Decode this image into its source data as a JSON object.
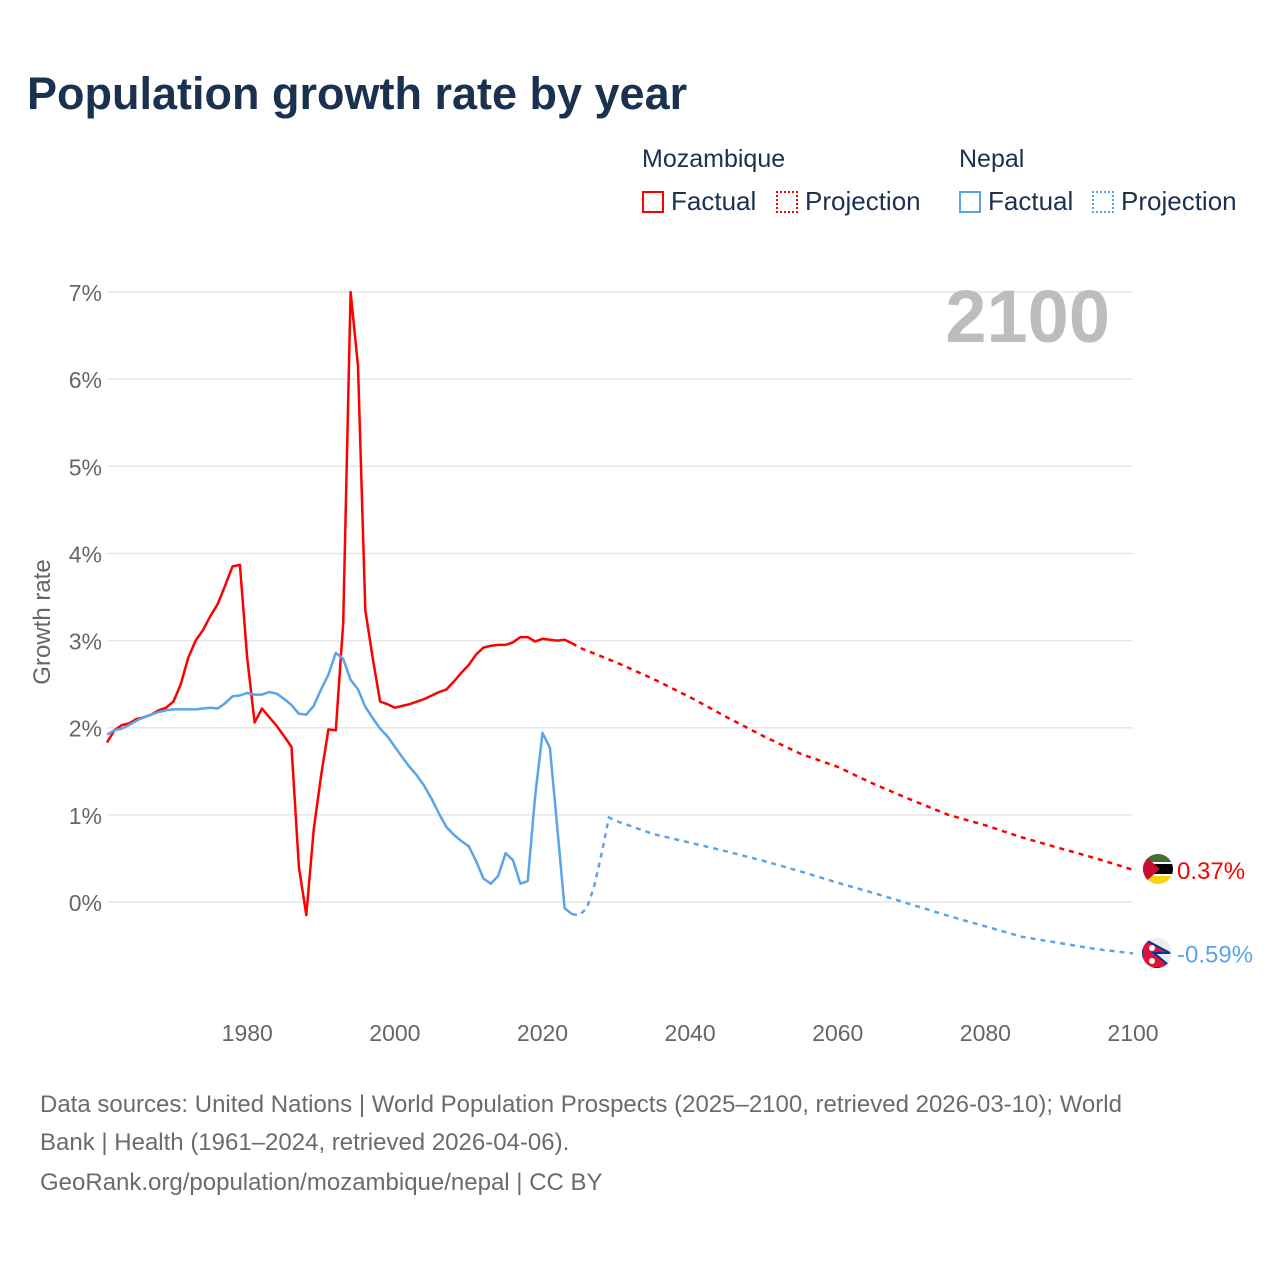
{
  "title": "Population growth rate by year",
  "legend": {
    "groups": [
      {
        "country": "Mozambique",
        "color": "#ff0000",
        "factual": "Factual",
        "projection": "Projection"
      },
      {
        "country": "Nepal",
        "color": "#5ba4ea",
        "factual": "Factual",
        "projection": "Projection"
      }
    ]
  },
  "footer": {
    "line1": "Data sources: United Nations | World Population Prospects (2025–2100, retrieved 2026-03-10); World",
    "line2": "Bank | Health (1961–2024, retrieved 2026-04-06).",
    "line3": "GeoRank.org/population/mozambique/nepal | CC BY"
  },
  "chart_data": {
    "type": "line",
    "title": "Population growth rate by year",
    "xlabel": "",
    "ylabel": "Growth rate",
    "xlim": [
      1961,
      2100
    ],
    "ylim": [
      -1.2,
      7
    ],
    "xticks": [
      1980,
      2000,
      2020,
      2040,
      2060,
      2080,
      2100
    ],
    "yticks": [
      0,
      1,
      2,
      3,
      4,
      5,
      6,
      7
    ],
    "ytick_labels": [
      "0%",
      "1%",
      "2%",
      "3%",
      "4%",
      "5%",
      "6%",
      "7%"
    ],
    "year_label": "2100",
    "grid": true,
    "legend_position": "top-right",
    "series": [
      {
        "name": "Mozambique",
        "color": "#ff0000",
        "end_label": "0.37%",
        "factual": {
          "x": [
            1961,
            1962,
            1963,
            1964,
            1965,
            1966,
            1967,
            1968,
            1969,
            1970,
            1971,
            1972,
            1973,
            1974,
            1975,
            1976,
            1977,
            1978,
            1979,
            1980,
            1981,
            1982,
            1983,
            1984,
            1985,
            1986,
            1987,
            1988,
            1989,
            1990,
            1991,
            1992,
            1993,
            1994,
            1995,
            1996,
            1997,
            1998,
            1999,
            2000,
            2001,
            2002,
            2003,
            2004,
            2005,
            2006,
            2007,
            2008,
            2009,
            2010,
            2011,
            2012,
            2013,
            2014,
            2015,
            2016,
            2017,
            2018,
            2019,
            2020,
            2021,
            2022,
            2023,
            2024
          ],
          "y": [
            1.83,
            1.97,
            2.03,
            2.05,
            2.1,
            2.12,
            2.15,
            2.2,
            2.23,
            2.3,
            2.5,
            2.8,
            3.0,
            3.12,
            3.28,
            3.42,
            3.63,
            3.85,
            3.87,
            2.8,
            2.06,
            2.22,
            2.12,
            2.02,
            1.9,
            1.78,
            0.4,
            -0.15,
            0.83,
            1.45,
            1.98,
            1.97,
            3.2,
            7.0,
            6.15,
            3.35,
            2.8,
            2.3,
            2.27,
            2.23,
            2.25,
            2.27,
            2.3,
            2.33,
            2.37,
            2.41,
            2.44,
            2.53,
            2.63,
            2.72,
            2.84,
            2.92,
            2.94,
            2.95,
            2.95,
            2.98,
            3.04,
            3.04,
            2.99,
            3.02,
            3.01,
            3.0,
            3.01,
            2.97
          ]
        },
        "projection": {
          "x": [
            2024,
            2025,
            2030,
            2035,
            2040,
            2045,
            2050,
            2055,
            2060,
            2065,
            2070,
            2075,
            2080,
            2085,
            2090,
            2095,
            2100
          ],
          "y": [
            2.97,
            2.92,
            2.75,
            2.56,
            2.35,
            2.12,
            1.9,
            1.7,
            1.55,
            1.35,
            1.17,
            1.0,
            0.88,
            0.74,
            0.62,
            0.5,
            0.37
          ]
        }
      },
      {
        "name": "Nepal",
        "color": "#5ba4ea",
        "end_label": "-0.59%",
        "factual": {
          "x": [
            1961,
            1962,
            1963,
            1964,
            1965,
            1966,
            1967,
            1968,
            1969,
            1970,
            1971,
            1972,
            1973,
            1974,
            1975,
            1976,
            1977,
            1978,
            1979,
            1980,
            1981,
            1982,
            1983,
            1984,
            1985,
            1986,
            1987,
            1988,
            1989,
            1990,
            1991,
            1992,
            1993,
            1994,
            1995,
            1996,
            1997,
            1998,
            1999,
            2000,
            2001,
            2002,
            2003,
            2004,
            2005,
            2006,
            2007,
            2008,
            2009,
            2010,
            2011,
            2012,
            2013,
            2014,
            2015,
            2016,
            2017,
            2018,
            2019,
            2020,
            2021,
            2022,
            2023,
            2024
          ],
          "y": [
            1.92,
            1.97,
            1.99,
            2.03,
            2.08,
            2.12,
            2.15,
            2.18,
            2.2,
            2.21,
            2.21,
            2.21,
            2.21,
            2.22,
            2.23,
            2.22,
            2.28,
            2.36,
            2.37,
            2.4,
            2.38,
            2.38,
            2.41,
            2.39,
            2.33,
            2.26,
            2.16,
            2.15,
            2.25,
            2.44,
            2.61,
            2.86,
            2.79,
            2.55,
            2.44,
            2.24,
            2.11,
            1.99,
            1.9,
            1.78,
            1.66,
            1.55,
            1.45,
            1.33,
            1.18,
            1.01,
            0.86,
            0.77,
            0.7,
            0.64,
            0.47,
            0.27,
            0.21,
            0.3,
            0.56,
            0.48,
            0.21,
            0.24,
            1.21,
            1.94,
            1.77,
            0.85,
            -0.07,
            -0.14
          ]
        },
        "projection": {
          "x": [
            2024,
            2025,
            2026,
            2027,
            2028,
            2029,
            2030,
            2035,
            2040,
            2045,
            2050,
            2055,
            2060,
            2065,
            2070,
            2075,
            2080,
            2085,
            2090,
            2095,
            2100
          ],
          "y": [
            -0.14,
            -0.15,
            -0.07,
            0.18,
            0.55,
            0.97,
            0.93,
            0.78,
            0.68,
            0.58,
            0.47,
            0.35,
            0.22,
            0.1,
            -0.03,
            -0.16,
            -0.28,
            -0.4,
            -0.47,
            -0.54,
            -0.59
          ]
        }
      }
    ]
  }
}
